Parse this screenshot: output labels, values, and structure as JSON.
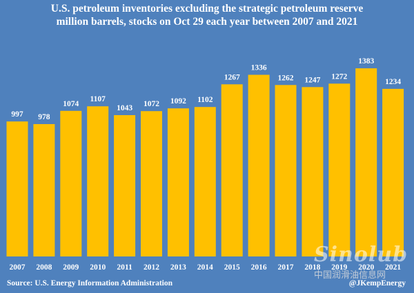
{
  "chart_data": {
    "type": "bar",
    "title_line1": "U.S. petroleum inventories excluding the strategic petroleum reserve",
    "title_line2": "million barrels, stocks on Oct 29 each year between 2007 and 2021",
    "categories": [
      "2007",
      "2008",
      "2009",
      "2010",
      "2011",
      "2012",
      "2013",
      "2014",
      "2015",
      "2016",
      "2017",
      "2018",
      "2019",
      "2020",
      "2021"
    ],
    "values": [
      997,
      978,
      1074,
      1107,
      1043,
      1072,
      1092,
      1102,
      1267,
      1336,
      1262,
      1247,
      1272,
      1383,
      1234
    ],
    "xlabel": "",
    "ylabel": "",
    "grid": false,
    "legend": "none",
    "bar_color": "#ffc000",
    "background_color": "#4f81bd"
  },
  "footer": {
    "source": "Source: U.S. Energy Information Administration",
    "credit": "@JKempEnergy"
  },
  "watermark": {
    "logo": "Sinolub",
    "cn": "中国润滑油信息网"
  }
}
